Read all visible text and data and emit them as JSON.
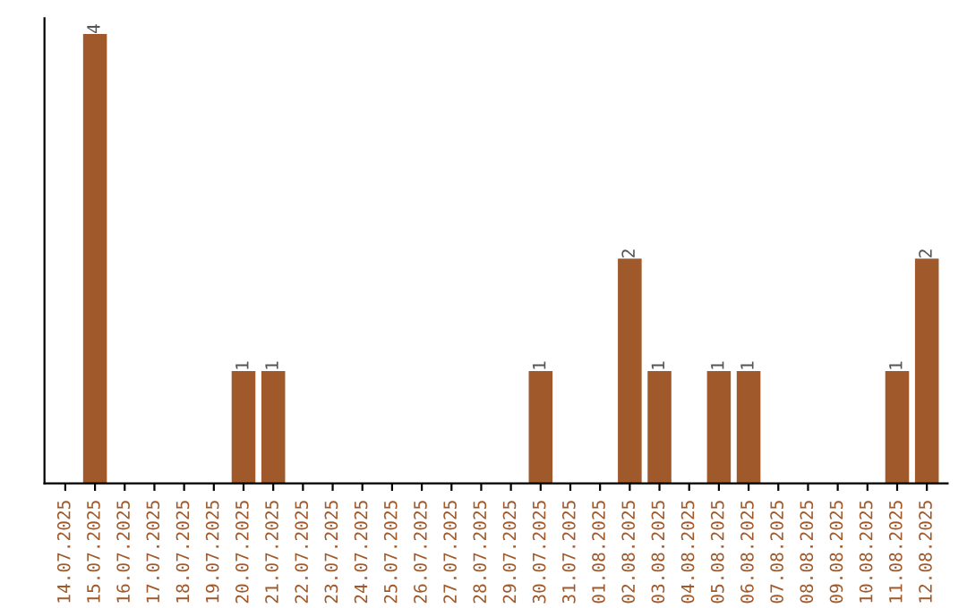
{
  "chart_data": {
    "type": "bar",
    "categories": [
      "14.07.2025",
      "15.07.2025",
      "16.07.2025",
      "17.07.2025",
      "18.07.2025",
      "19.07.2025",
      "20.07.2025",
      "21.07.2025",
      "22.07.2025",
      "23.07.2025",
      "24.07.2025",
      "25.07.2025",
      "26.07.2025",
      "27.07.2025",
      "28.07.2025",
      "29.07.2025",
      "30.07.2025",
      "31.07.2025",
      "01.08.2025",
      "02.08.2025",
      "03.08.2025",
      "04.08.2025",
      "05.08.2025",
      "06.08.2025",
      "07.08.2025",
      "08.08.2025",
      "09.08.2025",
      "10.08.2025",
      "11.08.2025",
      "12.08.2025"
    ],
    "values": [
      0,
      4,
      0,
      0,
      0,
      0,
      1,
      1,
      0,
      0,
      0,
      0,
      0,
      0,
      0,
      0,
      1,
      0,
      0,
      2,
      1,
      0,
      1,
      1,
      0,
      0,
      0,
      0,
      1,
      2
    ],
    "value_labels": [
      null,
      "4",
      null,
      null,
      null,
      null,
      "1",
      "1",
      null,
      null,
      null,
      null,
      null,
      null,
      null,
      null,
      "1",
      null,
      null,
      "2",
      "1",
      null,
      "1",
      "1",
      null,
      null,
      null,
      null,
      "1",
      "2"
    ],
    "color": "#a0592a",
    "tick_labels": "x",
    "grid": false,
    "legend": false
  }
}
